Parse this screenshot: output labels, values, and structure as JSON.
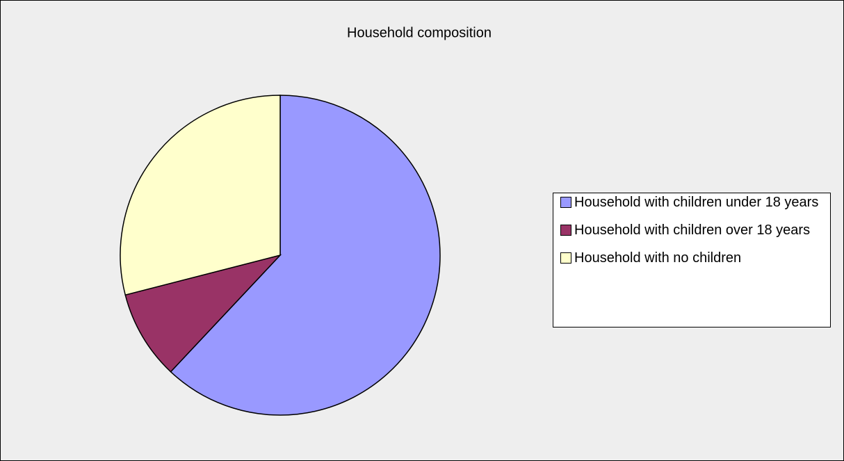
{
  "chart_data": {
    "type": "pie",
    "title": "Household composition",
    "categories": [
      "Household with children under 18 years",
      "Household with children over 18 years",
      "Household with no children"
    ],
    "values": [
      62,
      9,
      29
    ],
    "colors": [
      "#9999ff",
      "#993366",
      "#ffffcc"
    ]
  }
}
